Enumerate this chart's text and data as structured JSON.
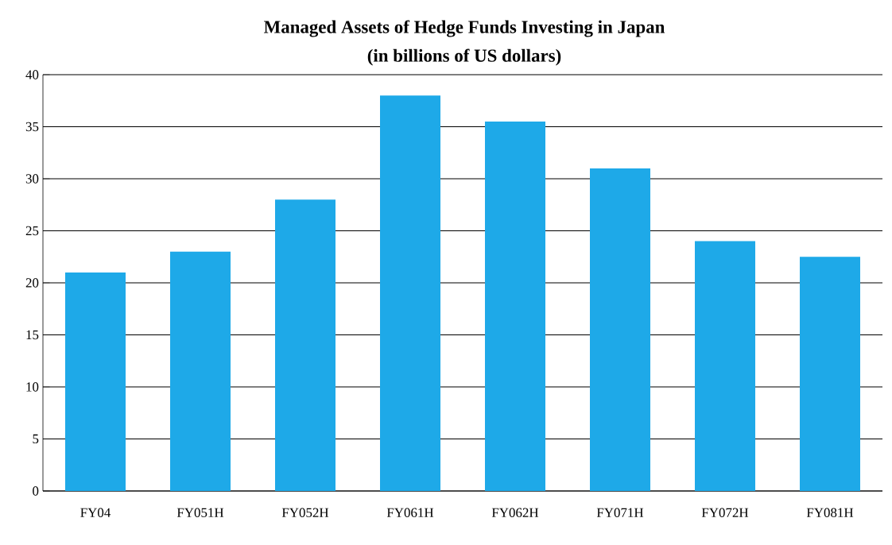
{
  "chart_data": {
    "type": "bar",
    "title": "Managed Assets of Hedge Funds Investing in Japan",
    "subtitle": "(in billions of US dollars)",
    "categories": [
      "FY04",
      "FY051H",
      "FY052H",
      "FY061H",
      "FY062H",
      "FY071H",
      "FY072H",
      "FY081H"
    ],
    "values": [
      21,
      23,
      28,
      38,
      35.5,
      31,
      24,
      22.5
    ],
    "color": "#1ea9e8",
    "ylim": [
      0,
      40
    ],
    "yticks": [
      0,
      5,
      10,
      15,
      20,
      25,
      30,
      35,
      40
    ],
    "grid": "y"
  }
}
